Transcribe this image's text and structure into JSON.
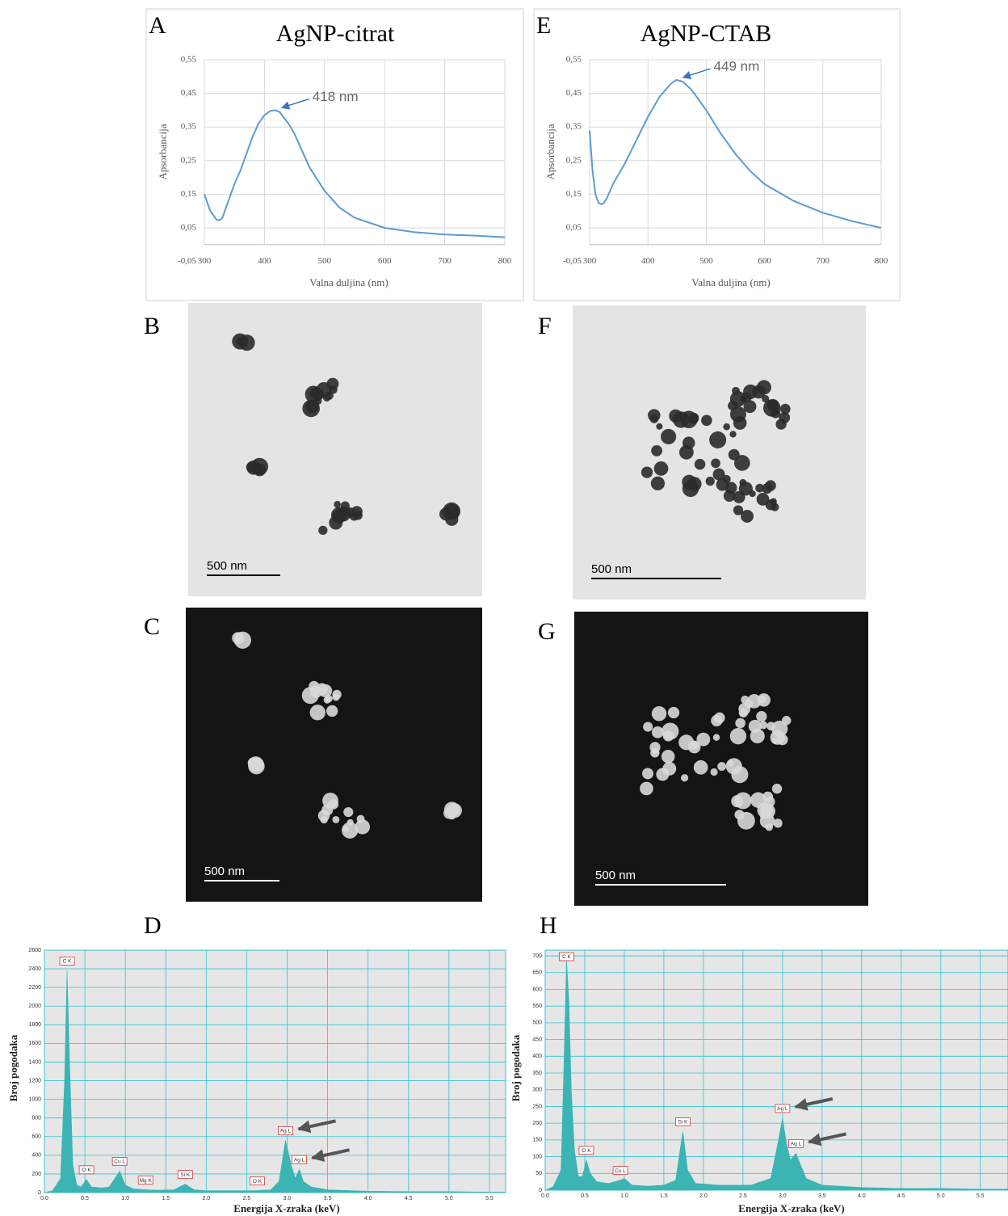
{
  "chart_data": [
    {
      "type": "line",
      "panel": "A",
      "title": "AgNP-citrat",
      "x_label": "Valna duljina (nm)",
      "y_label": "Apsorbancija",
      "annotation": "418 nm",
      "color": "#5b9bd5",
      "grid": true,
      "x": [
        300,
        310,
        320,
        325,
        330,
        340,
        350,
        360,
        370,
        380,
        390,
        400,
        410,
        418,
        425,
        440,
        450,
        460,
        475,
        500,
        525,
        550,
        600,
        650,
        700,
        750,
        800
      ],
      "values": [
        0.15,
        0.1,
        0.075,
        0.072,
        0.08,
        0.13,
        0.18,
        0.22,
        0.27,
        0.32,
        0.36,
        0.385,
        0.398,
        0.4,
        0.395,
        0.36,
        0.33,
        0.29,
        0.23,
        0.16,
        0.11,
        0.08,
        0.05,
        0.037,
        0.03,
        0.027,
        0.022
      ],
      "xlim": [
        300,
        800
      ],
      "ylim": [
        -0.05,
        0.55
      ],
      "xticks": [
        300,
        400,
        500,
        600,
        700,
        800
      ],
      "yticks": [
        {
          "value": -0.05,
          "label": "-0,05"
        },
        {
          "value": 0.05,
          "label": "0,05"
        },
        {
          "value": 0.15,
          "label": "0,15"
        },
        {
          "value": 0.25,
          "label": "0,25"
        },
        {
          "value": 0.35,
          "label": "0,35"
        },
        {
          "value": 0.45,
          "label": "0,45"
        },
        {
          "value": 0.55,
          "label": "0,55"
        }
      ]
    },
    {
      "type": "line",
      "panel": "E",
      "title": "AgNP-CTAB",
      "x_label": "Valna duljina (nm)",
      "y_label": "Apsorbancija",
      "annotation": "449 nm",
      "color": "#5b9bd5",
      "grid": true,
      "x": [
        300,
        305,
        310,
        315,
        320,
        325,
        330,
        340,
        350,
        360,
        380,
        400,
        420,
        440,
        449,
        460,
        475,
        500,
        525,
        550,
        575,
        600,
        650,
        700,
        750,
        800
      ],
      "values": [
        0.34,
        0.22,
        0.15,
        0.125,
        0.12,
        0.125,
        0.14,
        0.18,
        0.21,
        0.24,
        0.31,
        0.38,
        0.44,
        0.48,
        0.49,
        0.485,
        0.46,
        0.4,
        0.33,
        0.27,
        0.22,
        0.18,
        0.13,
        0.095,
        0.07,
        0.05
      ],
      "xlim": [
        300,
        800
      ],
      "ylim": [
        -0.05,
        0.55
      ],
      "xticks": [
        300,
        400,
        500,
        600,
        700,
        800
      ],
      "yticks": [
        {
          "value": -0.05,
          "label": "-0,05"
        },
        {
          "value": 0.05,
          "label": "0,05"
        },
        {
          "value": 0.15,
          "label": "0,15"
        },
        {
          "value": 0.25,
          "label": "0,25"
        },
        {
          "value": 0.35,
          "label": "0,35"
        },
        {
          "value": 0.45,
          "label": "0,45"
        },
        {
          "value": 0.55,
          "label": "0,55"
        }
      ]
    },
    {
      "type": "area",
      "panel": "D",
      "x_label": "Energija X-zraka (keV)",
      "y_label": "Broj pogodaka",
      "color": "#3cb4b4",
      "background": "#e6e6e6",
      "grid_color": "#33c3d3",
      "grid": true,
      "x": [
        0,
        0.1,
        0.2,
        0.25,
        0.28,
        0.31,
        0.35,
        0.4,
        0.45,
        0.52,
        0.58,
        0.7,
        0.8,
        0.93,
        1.0,
        1.1,
        1.25,
        1.4,
        1.6,
        1.74,
        1.85,
        2.0,
        2.3,
        2.6,
        2.8,
        2.9,
        2.98,
        3.05,
        3.1,
        3.15,
        3.2,
        3.3,
        3.5,
        4.0,
        4.5,
        5.0,
        5.5,
        5.7
      ],
      "values": [
        0,
        20,
        150,
        1200,
        2380,
        1400,
        300,
        80,
        60,
        140,
        60,
        50,
        60,
        230,
        80,
        40,
        30,
        25,
        30,
        90,
        30,
        20,
        20,
        20,
        30,
        120,
        560,
        300,
        150,
        250,
        120,
        60,
        30,
        15,
        10,
        10,
        5,
        5
      ],
      "xlim": [
        0,
        5.7
      ],
      "ylim": [
        0,
        2600
      ],
      "xticks": [
        {
          "value": 0,
          "label": "0.0"
        },
        0.5,
        {
          "value": 1,
          "label": "1.0"
        },
        1.5,
        {
          "value": 2,
          "label": "2.0"
        },
        2.5,
        {
          "value": 3,
          "label": "3.0"
        },
        3.5,
        {
          "value": 4,
          "label": "4.0"
        },
        4.5,
        {
          "value": 5,
          "label": "5.0"
        },
        5.5
      ],
      "yticks": [
        0,
        200,
        400,
        600,
        800,
        1000,
        1200,
        1400,
        1600,
        1800,
        2000,
        2200,
        2400,
        2600
      ],
      "peaks": [
        {
          "label": "C K",
          "x": 0.28,
          "y": 2380
        },
        {
          "label": "O K",
          "x": 0.52,
          "y": 140
        },
        {
          "label": "Cu L",
          "x": 0.93,
          "y": 230
        },
        {
          "label": "Mg K",
          "x": 1.25,
          "y": 30
        },
        {
          "label": "Si K",
          "x": 1.74,
          "y": 90
        },
        {
          "label": "O K",
          "x": 2.63,
          "y": 20
        },
        {
          "label": "Ag L",
          "x": 2.98,
          "y": 560
        },
        {
          "label": "Ag L",
          "x": 3.15,
          "y": 250
        }
      ]
    },
    {
      "type": "area",
      "panel": "H",
      "x_label": "Energija X-zraka (keV)",
      "y_label": "Broj pogodaka",
      "color": "#3cb4b4",
      "background": "#e6e6e6",
      "grid_color": "#33c3d3",
      "grid": true,
      "x": [
        0,
        0.1,
        0.2,
        0.24,
        0.27,
        0.3,
        0.33,
        0.37,
        0.42,
        0.47,
        0.52,
        0.57,
        0.65,
        0.8,
        0.95,
        1.0,
        1.1,
        1.3,
        1.5,
        1.65,
        1.74,
        1.8,
        1.9,
        2.2,
        2.6,
        2.85,
        2.95,
        3.0,
        3.05,
        3.1,
        3.17,
        3.22,
        3.3,
        3.5,
        4.0,
        4.5,
        5.0,
        5.5,
        5.85
      ],
      "values": [
        0,
        10,
        60,
        400,
        690,
        560,
        300,
        120,
        40,
        40,
        90,
        50,
        25,
        20,
        30,
        35,
        15,
        12,
        15,
        30,
        175,
        60,
        20,
        15,
        15,
        35,
        150,
        215,
        140,
        90,
        110,
        80,
        35,
        15,
        8,
        5,
        5,
        3,
        3
      ],
      "xlim": [
        0,
        5.85
      ],
      "ylim": [
        0,
        717
      ],
      "xticks": [
        {
          "value": 0,
          "label": "0.0"
        },
        0.5,
        {
          "value": 1,
          "label": "1.0"
        },
        1.5,
        {
          "value": 2,
          "label": "2.0"
        },
        2.5,
        {
          "value": 3,
          "label": "3.0"
        },
        3.5,
        {
          "value": 4,
          "label": "4.0"
        },
        4.5,
        {
          "value": 5,
          "label": "5.0"
        },
        5.5
      ],
      "yticks": [
        0,
        50,
        100,
        150,
        200,
        250,
        300,
        350,
        400,
        450,
        500,
        550,
        600,
        650,
        700
      ],
      "peaks": [
        {
          "label": "C K",
          "x": 0.27,
          "y": 690
        },
        {
          "label": "O K",
          "x": 0.52,
          "y": 90
        },
        {
          "label": "Cu L",
          "x": 0.95,
          "y": 30
        },
        {
          "label": "Si K",
          "x": 1.74,
          "y": 175
        },
        {
          "label": "Ag L",
          "x": 3.0,
          "y": 215
        },
        {
          "label": "Ag L",
          "x": 3.17,
          "y": 110
        }
      ]
    }
  ],
  "images": [
    {
      "panel": "B",
      "scale_bar": "500 nm",
      "mode": "bright"
    },
    {
      "panel": "F",
      "scale_bar": "500 nm",
      "mode": "bright"
    },
    {
      "panel": "C",
      "scale_bar": "500 nm",
      "mode": "dark"
    },
    {
      "panel": "G",
      "scale_bar": "500 nm",
      "mode": "dark"
    }
  ]
}
